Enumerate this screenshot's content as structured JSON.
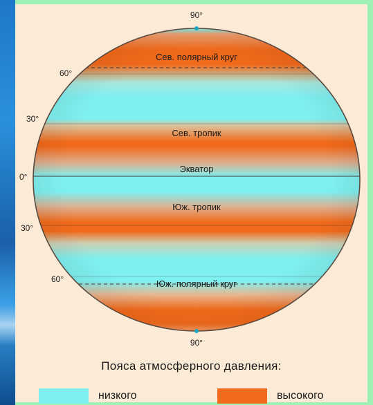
{
  "diagram": {
    "latitudes": {
      "north_pole": "90°",
      "n60": "60°",
      "n30": "30°",
      "equator": "0°",
      "s30": "30°",
      "s60": "60°",
      "south_pole": "90°"
    },
    "zones": {
      "arctic_circle": "Сев. полярный круг",
      "tropic_cancer": "Сев. тропик",
      "equator": "Экватор",
      "tropic_capricorn": "Юж. тропик",
      "antarctic_circle": "Юж. полярный круг"
    }
  },
  "legend": {
    "title": "Пояса атмосферного давления:",
    "low": {
      "label": "низкого",
      "color": "#7ff0f0"
    },
    "high": {
      "label": "высокого",
      "color": "#f26a1b"
    }
  }
}
